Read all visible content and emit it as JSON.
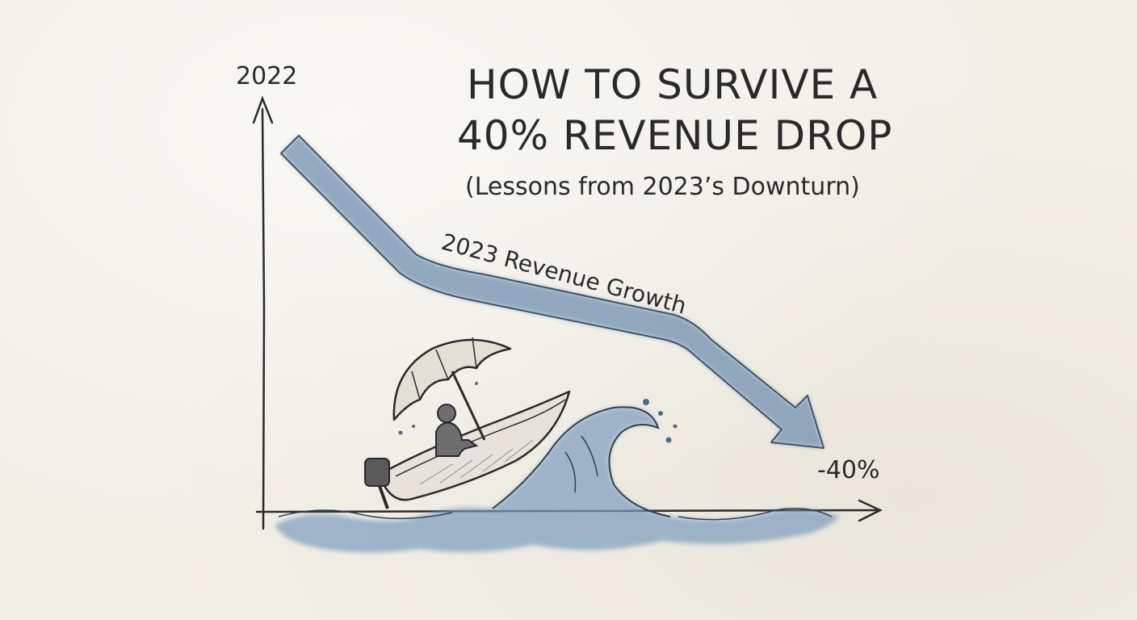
{
  "title": {
    "line1": "HOW TO SURVIVE A",
    "line2": "40% REVENUE DROP",
    "subtitle": "(Lessons from 2023’s Downturn)"
  },
  "chart": {
    "y_axis_label": "2022",
    "arrow_label": "2023 Revenue Growth",
    "end_value_label": "-40%"
  },
  "colors": {
    "paper": "#f2efe7",
    "ink": "#2a2a2a",
    "arrow_blue": "#6f8fb0",
    "water_blue": "#7b9cbd"
  },
  "icons": {
    "boat": "boat-icon",
    "umbrella": "umbrella-icon",
    "person": "person-icon",
    "wave": "wave-icon"
  }
}
